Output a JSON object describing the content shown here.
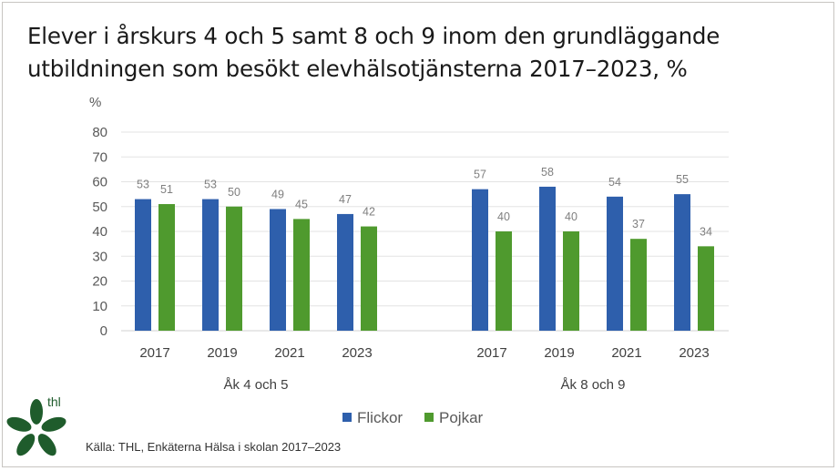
{
  "chart_data": {
    "type": "bar",
    "title": "Elever i årskurs 4 och 5 samt 8 och 9 inom den grundläggande utbildningen som besökt elevhälsotjänsterna 2017–2023, %",
    "ylabel": "%",
    "ylim": [
      0,
      80
    ],
    "yticks": [
      0,
      10,
      20,
      30,
      40,
      50,
      60,
      70,
      80
    ],
    "grid": true,
    "legend_position": "bottom",
    "groups": [
      {
        "label": "Åk 4 och 5",
        "categories": [
          "2017",
          "2019",
          "2021",
          "2023"
        ]
      },
      {
        "label": "Åk 8 och 9",
        "categories": [
          "2017",
          "2019",
          "2021",
          "2023"
        ]
      }
    ],
    "series": [
      {
        "name": "Flickor",
        "color": "#2e5fac",
        "values": [
          [
            53,
            53,
            49,
            47
          ],
          [
            57,
            58,
            54,
            55
          ]
        ]
      },
      {
        "name": "Pojkar",
        "color": "#4f9a2e",
        "values": [
          [
            51,
            50,
            45,
            42
          ],
          [
            40,
            40,
            37,
            34
          ]
        ]
      }
    ]
  },
  "source": "Källa: THL, Enkäterna Hälsa i skolan 2017–2023",
  "logo_text": "thl"
}
